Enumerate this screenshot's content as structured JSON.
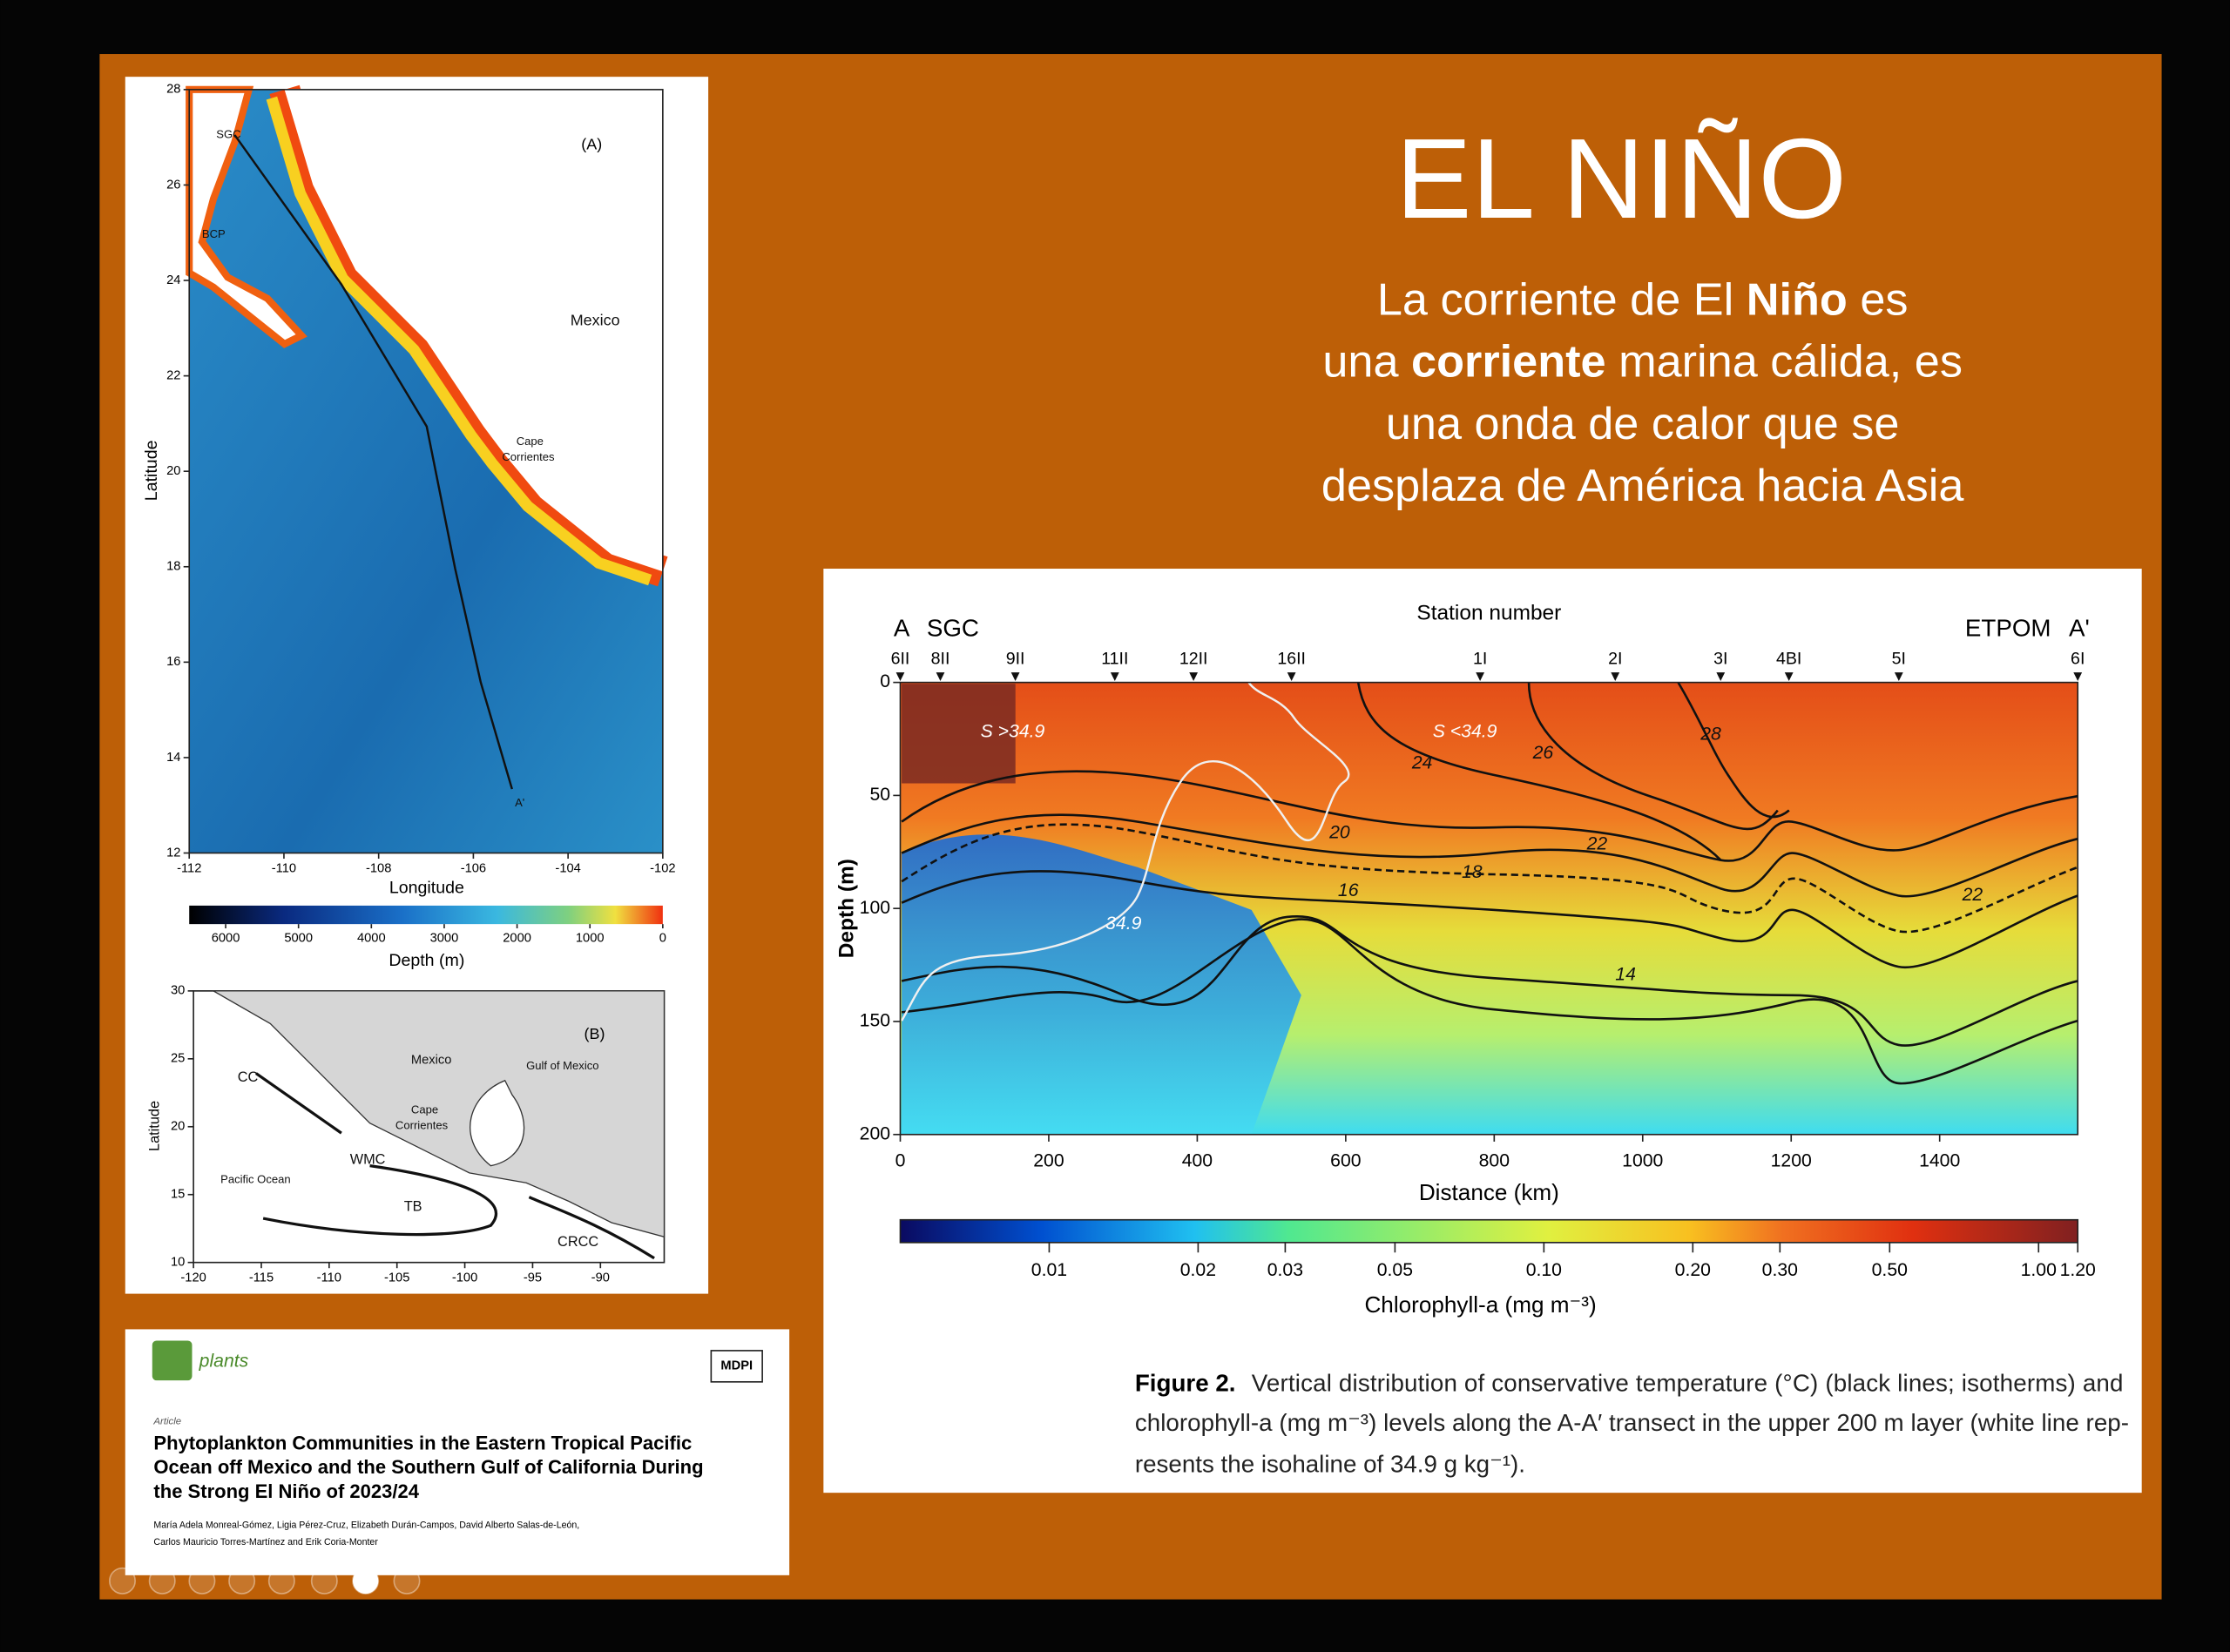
{
  "slide": {
    "title": "EL NIÑO",
    "body": [
      [
        {
          "text": "La corriente de El ",
          "bold": false
        },
        {
          "text": "Niño",
          "bold": true
        },
        {
          "text": " es",
          "bold": false
        }
      ],
      [
        {
          "text": "una ",
          "bold": false
        },
        {
          "text": "corriente",
          "bold": true
        },
        {
          "text": " marina cálida, es",
          "bold": false
        }
      ],
      [
        {
          "text": "una onda de calor que se",
          "bold": false
        }
      ],
      [
        {
          "text": "desplaza de América hacia Asia",
          "bold": false
        }
      ]
    ]
  },
  "map_figure": {
    "panel_a": {
      "label": "(A)",
      "xlabel": "Longitude",
      "ylabel": "Latitude",
      "xlim": [
        -112,
        -102
      ],
      "ylim": [
        12,
        28
      ],
      "xticks": [
        -112,
        -110,
        -108,
        -106,
        -104,
        -102
      ],
      "yticks": [
        12,
        14,
        16,
        18,
        20,
        22,
        24,
        26,
        28
      ],
      "places": [
        "SGC",
        "BCP",
        "Mexico",
        "Cape",
        "Corrientes",
        "A'"
      ],
      "colorbar": {
        "label": "Depth (m)",
        "lim": [
          6500,
          0
        ],
        "ticks": [
          6000,
          5000,
          4000,
          3000,
          2000,
          1000,
          0
        ]
      }
    },
    "panel_b": {
      "label": "(B)",
      "ylabel": "Latitude",
      "xlim": [
        -120,
        -85.3
      ],
      "ylim": [
        10,
        30
      ],
      "xticks": [
        -120,
        -115,
        -110,
        -105,
        -100,
        -95,
        -90
      ],
      "yticks": [
        10,
        15,
        20,
        25,
        30
      ],
      "places": [
        "Mexico",
        "Gulf of Mexico",
        "Cape",
        "Corrientes",
        "CC",
        "WMC",
        "Pacific Ocean",
        "TB",
        "CRCC"
      ]
    }
  },
  "figure2": {
    "top_label": "Station number",
    "ends": [
      "A",
      "SGC",
      "ETPOM",
      "A'"
    ],
    "station_labels": [
      "6II",
      "8II",
      "9II",
      "11II",
      "12II",
      "16II",
      "1I",
      "2I",
      "3I",
      "4BI",
      "5I",
      "6I"
    ],
    "station_distance": [
      0,
      54,
      155,
      289,
      395,
      527,
      781,
      963,
      1105,
      1197,
      1345,
      1586
    ],
    "xlabel": "Distance (km)",
    "ylabel": "Depth (m)",
    "xlim": [
      0,
      1586
    ],
    "ylim": [
      0,
      200
    ],
    "y_inverted": true,
    "xticks": [
      0,
      200,
      400,
      600,
      800,
      1000,
      1200,
      1400
    ],
    "yticks": [
      0,
      50,
      100,
      150,
      200
    ],
    "isotherm_labels": [
      "28",
      "26",
      "24",
      "22",
      "20",
      "18",
      "16",
      "14",
      "22"
    ],
    "salinity_labels": [
      "S >34.9",
      "S <34.9",
      "34.9"
    ],
    "colorbar": {
      "label": "Chlorophyll-a (mg m⁻³)",
      "log": true,
      "lim": [
        0.005,
        1.2
      ],
      "ticks": [
        0.01,
        0.02,
        0.03,
        0.05,
        {
          "value": 0.1,
          "label": "0.10"
        },
        {
          "value": 0.2,
          "label": "0.20"
        },
        {
          "value": 0.3,
          "label": "0.30"
        },
        {
          "value": 0.5,
          "label": "0.50"
        },
        {
          "value": 1,
          "label": "1.00"
        },
        {
          "value": 1.2,
          "label": "1.20"
        }
      ]
    },
    "caption": {
      "label": "Figure 2.",
      "lines": [
        "Vertical distribution of conservative temperature (°C) (black lines; isotherms) and",
        "chlorophyll-a (mg m⁻³) levels along the A-A′ transect in the upper 200 m layer (white line rep-",
        "resents the isohaline of 34.9 g kg⁻¹)."
      ]
    }
  },
  "paper": {
    "journal": "plants",
    "publisher": "MDPI",
    "kind": "Article",
    "title_lines": [
      "Phytoplankton Communities in the Eastern Tropical Pacific",
      "Ocean off Mexico and the Southern Gulf of California During",
      "the Strong El Niño of 2023/24"
    ],
    "author_lines": [
      "María Adela Monreal-Gómez, Ligia Pérez-Cruz, Elizabeth Durán-Campos, David Alberto Salas-de-León,",
      "Carlos Mauricio Torres-Martínez and Erik Coria-Monter"
    ]
  }
}
